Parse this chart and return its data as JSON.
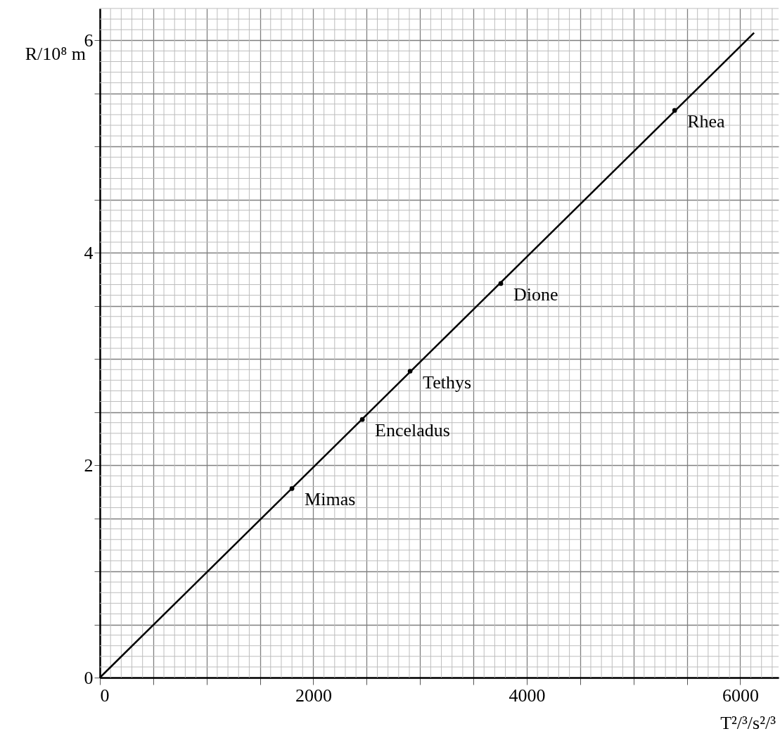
{
  "chart_data": {
    "type": "line",
    "xlabel": "T²/³/s²/³",
    "ylabel": "R/10⁸ m",
    "xlim": [
      0,
      6360
    ],
    "ylim": [
      0,
      6.3
    ],
    "xticks": [
      0,
      {
        "value": 500,
        "label": null
      },
      {
        "value": 1000,
        "label": null
      },
      {
        "value": 1500,
        "label": null
      },
      2000,
      {
        "value": 2500,
        "label": null
      },
      {
        "value": 3000,
        "label": null
      },
      {
        "value": 3500,
        "label": null
      },
      4000,
      {
        "value": 4500,
        "label": null
      },
      {
        "value": 5000,
        "label": null
      },
      {
        "value": 5500,
        "label": null
      },
      6000
    ],
    "yticks": [
      0,
      {
        "value": 0.5,
        "label": null
      },
      {
        "value": 1,
        "label": null
      },
      {
        "value": 1.5,
        "label": null
      },
      2,
      {
        "value": 2.5,
        "label": null
      },
      {
        "value": 3,
        "label": null
      },
      {
        "value": 3.5,
        "label": null
      },
      4,
      {
        "value": 4.5,
        "label": null
      },
      {
        "value": 5,
        "label": null
      },
      {
        "value": 5.5,
        "label": null
      },
      6
    ],
    "grid": true,
    "series": [
      {
        "color": "#000000",
        "x": [
          0,
          6130
        ],
        "values": [
          0,
          6.07
        ]
      },
      {
        "type": "scatter",
        "marker": "circle",
        "color": "#000000",
        "x": [
          1800,
          2459,
          2907,
          3757,
          5386
        ],
        "values": [
          1.78,
          2.43,
          2.885,
          3.71,
          5.34
        ]
      }
    ],
    "annotations": [
      {
        "text": "Mimas",
        "x": 1800,
        "y": 1.78
      },
      {
        "text": "Enceladus",
        "x": 2459,
        "y": 2.43
      },
      {
        "text": "Tethys",
        "x": 2907,
        "y": 2.885
      },
      {
        "text": "Dione",
        "x": 3757,
        "y": 3.71
      },
      {
        "text": "Rhea",
        "x": 5386,
        "y": 5.34
      }
    ]
  }
}
